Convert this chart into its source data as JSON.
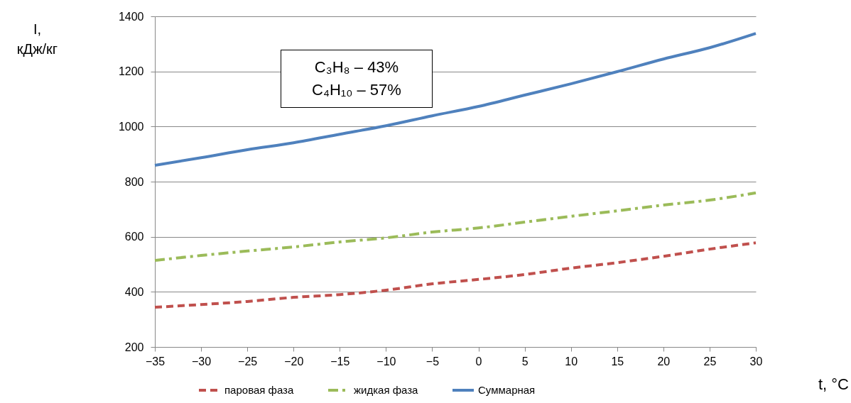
{
  "chart_data": {
    "type": "line",
    "xlabel": "t, °C",
    "ylabel": "I, кДж/кг",
    "x": [
      -35,
      -30,
      -25,
      -20,
      -15,
      -10,
      -5,
      0,
      5,
      10,
      15,
      20,
      25,
      30
    ],
    "series": [
      {
        "name": "паровая фаза",
        "color": "#c0504d",
        "line_style": "dashed",
        "values": [
          344,
          354,
          365,
          380,
          390,
          406,
          429,
          445,
          463,
          486,
          506,
          529,
          555,
          578
        ]
      },
      {
        "name": "жидкая фаза",
        "color": "#9bbb59",
        "line_style": "dashdot",
        "values": [
          514,
          532,
          548,
          563,
          581,
          596,
          617,
          632,
          653,
          674,
          694,
          715,
          733,
          759
        ]
      },
      {
        "name": "Суммарная",
        "color": "#4f81bd",
        "line_style": "solid",
        "values": [
          859,
          887,
          916,
          941,
          972,
          1003,
          1039,
          1073,
          1114,
          1155,
          1199,
          1245,
          1286,
          1338
        ]
      }
    ],
    "xlim": [
      -35,
      30
    ],
    "xticks": [
      -35,
      -30,
      -25,
      -20,
      -15,
      -10,
      -5,
      0,
      5,
      10,
      15,
      20,
      25,
      30
    ],
    "ylim": [
      200,
      1400
    ],
    "yticks": [
      200,
      400,
      600,
      800,
      1000,
      1200,
      1400
    ],
    "grid": "y",
    "legend": "bottom",
    "marker": "none",
    "annotations": [
      "C₃H₈ – 43%",
      "C₄H₁₀ – 57%"
    ]
  }
}
